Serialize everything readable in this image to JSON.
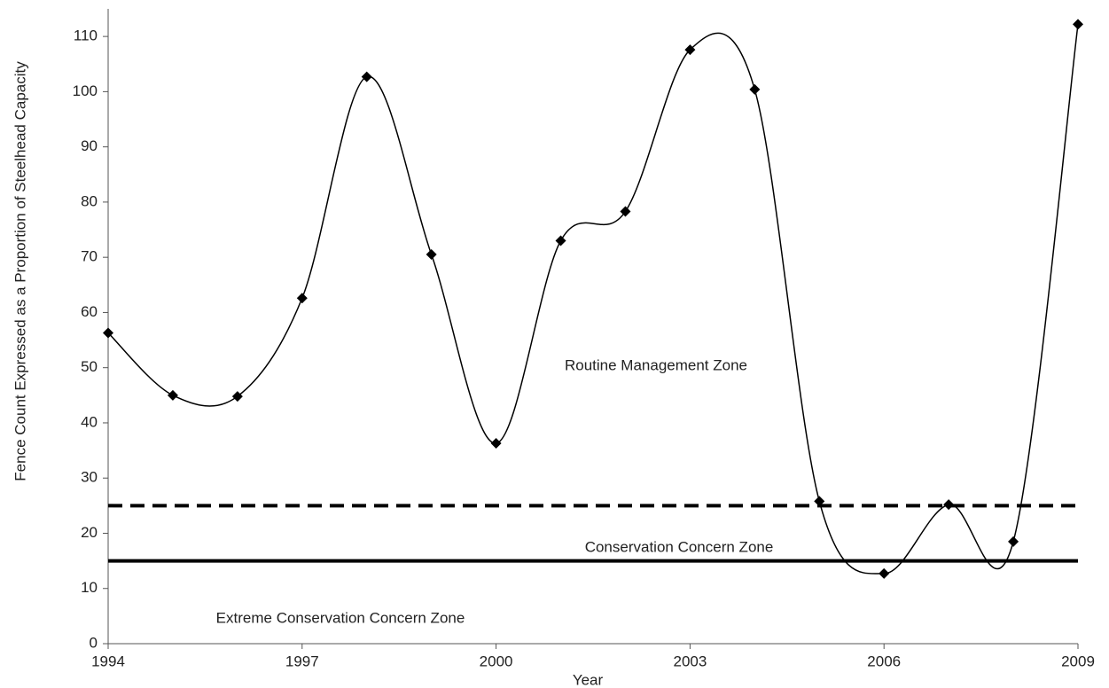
{
  "chart_data": {
    "type": "line",
    "x_label": "Year",
    "y_label": "Fence Count Expressed as a Proportion of Steelhead Capacity",
    "x": [
      1994,
      1995,
      1996,
      1997,
      1998,
      1999,
      2000,
      2001,
      2002,
      2003,
      2004,
      2005,
      2006,
      2007,
      2008,
      2009
    ],
    "series": [
      {
        "color": "#000000",
        "values": [
          56.3,
          45,
          44.8,
          62.6,
          102.7,
          70.5,
          36.3,
          73,
          78.3,
          107.6,
          100.4,
          25.8,
          12.7,
          25.2,
          18.5,
          112.2
        ]
      }
    ],
    "xlim": [
      1994,
      2009
    ],
    "xticks": [
      1994,
      1997,
      2000,
      2003,
      2006,
      2009
    ],
    "ylim": [
      0,
      115
    ],
    "yticks": [
      0,
      10,
      20,
      30,
      40,
      50,
      60,
      70,
      80,
      90,
      100,
      110
    ],
    "reference_lines": [
      {
        "value": 25,
        "style": "dashed"
      },
      {
        "value": 15,
        "style": "solid"
      }
    ],
    "annotations": [
      "Routine Management Zone",
      "Conservation Concern Zone",
      "Extreme Conservation Concern Zone"
    ],
    "grid": false
  }
}
